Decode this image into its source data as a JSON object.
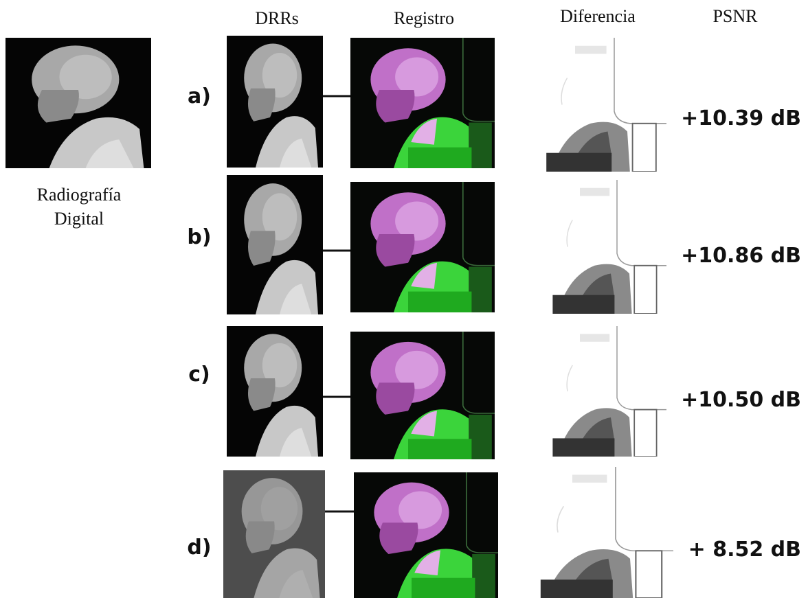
{
  "headers": [
    "DRRs",
    "Registro",
    "Diferencia",
    "PSNR"
  ],
  "reference": {
    "label": [
      "Radiografía",
      "Digital"
    ]
  },
  "rows": [
    {
      "label": "a)",
      "psnr": "+10.39 dB"
    },
    {
      "label": "b)",
      "psnr": "+10.86 dB"
    },
    {
      "label": "c)",
      "psnr": "+10.50 dB"
    },
    {
      "label": "d)",
      "psnr": "+ 8.52 dB"
    }
  ]
}
